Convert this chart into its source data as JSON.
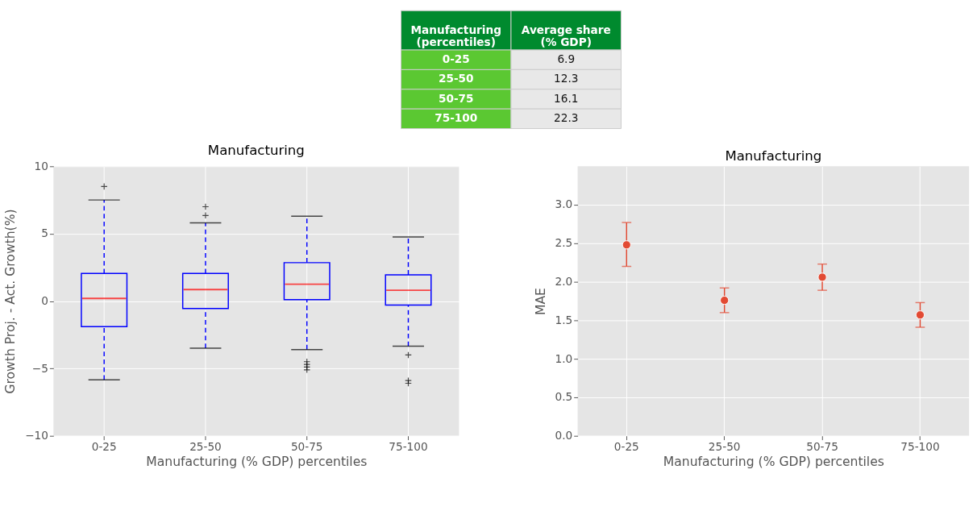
{
  "chart_data": [
    {
      "type": "other",
      "xlabel": "Manufacturing (percentiles)",
      "ylabel": "Average share (% GDP)",
      "categories": [
        "0-25",
        "25-50",
        "50-75",
        "75-100"
      ],
      "values": [
        6.9,
        12.3,
        16.1,
        22.3
      ],
      "data_labels": true
    },
    {
      "type": "box",
      "title": "Manufacturing",
      "xlabel": "Manufacturing (% GDP) percentiles",
      "ylabel": "Growth Proj. - Act. Growth(%)",
      "categories": [
        "0-25",
        "25-50",
        "50-75",
        "75-100"
      ],
      "ylim": [
        -10,
        10
      ],
      "yticks": [
        {
          "value": -10,
          "label": "−10"
        },
        {
          "value": -5,
          "label": "−5"
        },
        0,
        5,
        10
      ],
      "grid": true,
      "boxes": [
        {
          "low": -5.85,
          "q1": -1.9,
          "median": 0.2,
          "q3": 2.05,
          "high": 7.5,
          "outliers": [
            8.5
          ]
        },
        {
          "low": -3.5,
          "q1": -0.55,
          "median": 0.85,
          "q3": 2.05,
          "high": 5.8,
          "outliers": [
            7.0,
            6.35
          ]
        },
        {
          "low": -3.6,
          "q1": 0.1,
          "median": 1.25,
          "q3": 2.85,
          "high": 6.3,
          "outliers": [
            -4.5,
            -4.7,
            -4.9,
            -5.1
          ]
        },
        {
          "low": -3.35,
          "q1": -0.3,
          "median": 0.8,
          "q3": 1.95,
          "high": 4.75,
          "outliers": [
            -4.0,
            -5.9,
            -6.1
          ]
        }
      ]
    },
    {
      "type": "scatter",
      "title": "Manufacturing",
      "xlabel": "Manufacturing (% GDP) percentiles",
      "ylabel": "MAE",
      "categories": [
        "0-25",
        "25-50",
        "50-75",
        "75-100"
      ],
      "ylim": [
        0,
        3.5
      ],
      "yticks": [
        {
          "value": 0,
          "label": "0.0"
        },
        {
          "value": 0.5,
          "label": "0.5"
        },
        {
          "value": 1,
          "label": "1.0"
        },
        {
          "value": 1.5,
          "label": "1.5"
        },
        {
          "value": 2,
          "label": "2.0"
        },
        {
          "value": 2.5,
          "label": "2.5"
        },
        {
          "value": 3,
          "label": "3.0"
        }
      ],
      "grid": true,
      "marker": "circle",
      "series": [
        {
          "color": "#e24a33",
          "values": [
            2.48,
            1.76,
            2.06,
            1.57
          ],
          "errors": [
            [
              2.2,
              2.77
            ],
            [
              1.6,
              1.92
            ],
            [
              1.89,
              2.23
            ],
            [
              1.41,
              1.73
            ]
          ]
        }
      ]
    }
  ]
}
